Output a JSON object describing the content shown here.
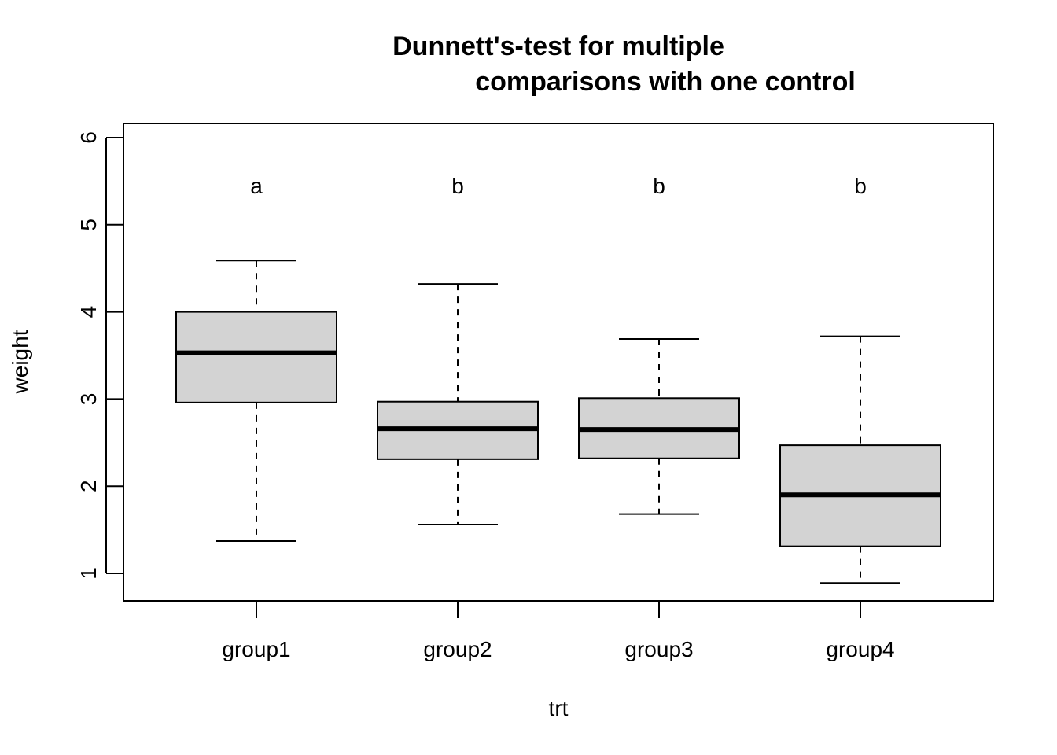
{
  "chart_data": {
    "type": "box",
    "title_line1": "Dunnett's-test for multiple",
    "title_line2": "comparisons with one control",
    "xlabel": "trt",
    "ylabel": "weight",
    "ylim": [
      0.7,
      6.2
    ],
    "yticks": [
      1,
      2,
      3,
      4,
      5,
      6
    ],
    "categories": [
      "group1",
      "group2",
      "group3",
      "group4"
    ],
    "boxes": [
      {
        "min": 1.37,
        "q1": 2.96,
        "median": 3.53,
        "q3": 4.0,
        "max": 4.59,
        "letter": "a"
      },
      {
        "min": 1.56,
        "q1": 2.31,
        "median": 2.66,
        "q3": 2.97,
        "max": 4.32,
        "letter": "b"
      },
      {
        "min": 1.68,
        "q1": 2.32,
        "median": 2.65,
        "q3": 3.01,
        "max": 3.69,
        "letter": "b"
      },
      {
        "min": 0.89,
        "q1": 1.31,
        "median": 1.9,
        "q3": 2.47,
        "max": 3.72,
        "letter": "b"
      }
    ],
    "box_fill": "#d3d3d3",
    "letter_y": 5.45,
    "grid": false,
    "legend": "none"
  }
}
